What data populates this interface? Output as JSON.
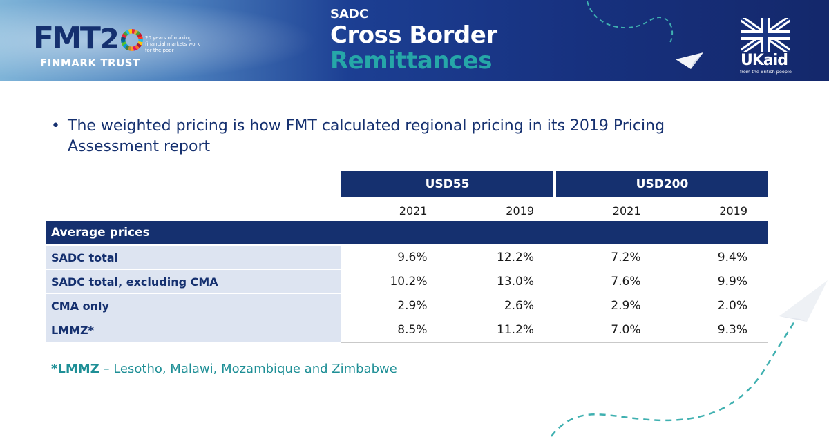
{
  "header": {
    "logo_word": "FMT",
    "logo_two": "2",
    "logo_org": "FINMARK TRUST",
    "logo_tagline": "20 years of making financial markets work for the poor",
    "title_region": "SADC",
    "title_line1": "Cross Border",
    "title_line2": "Remittances",
    "donor_word": "UKaid",
    "donor_sub": "from the British people"
  },
  "bullet_text": "The weighted pricing is how FMT calculated regional pricing in its 2019 Pricing Assessment report",
  "table": {
    "groups": [
      "USD55",
      "USD200"
    ],
    "years": [
      "2021",
      "2019",
      "2021",
      "2019"
    ],
    "section_label": "Average prices",
    "rows": [
      {
        "name": "SADC total",
        "values": [
          "9.6%",
          "12.2%",
          "7.2%",
          "9.4%"
        ]
      },
      {
        "name": "SADC total, excluding CMA",
        "values": [
          "10.2%",
          "13.0%",
          "7.6%",
          "9.9%"
        ]
      },
      {
        "name": "CMA only",
        "values": [
          "2.9%",
          "2.6%",
          "2.9%",
          "2.0%"
        ]
      },
      {
        "name": "LMMZ*",
        "values": [
          "8.5%",
          "11.2%",
          "7.0%",
          "9.3%"
        ]
      }
    ]
  },
  "footnote": {
    "term": "*LMMZ",
    "definition": " – Lesotho, Malawi, Mozambique and Zimbabwe"
  },
  "colors": {
    "navy": "#15306f",
    "teal": "#26a7a8",
    "row_tint": "#dde4f1"
  }
}
